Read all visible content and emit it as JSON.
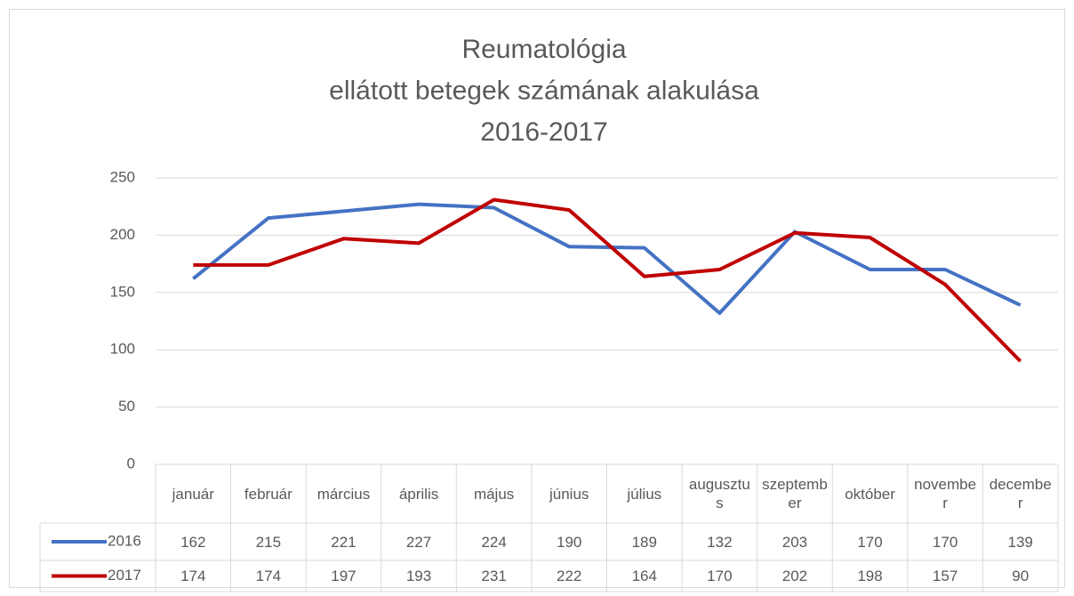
{
  "chart_data": {
    "type": "line",
    "title": [
      "Reumatológia",
      "ellátott betegek számának alakulása",
      "2016-2017"
    ],
    "categories": [
      "január",
      "február",
      "március",
      "április",
      "május",
      "június",
      "július",
      "augusztus",
      "szeptember",
      "október",
      "november",
      "december"
    ],
    "series": [
      {
        "name": "2016",
        "color": "#4472c4",
        "values": [
          162,
          215,
          221,
          227,
          224,
          190,
          189,
          132,
          203,
          170,
          170,
          139
        ]
      },
      {
        "name": "2017",
        "color": "#c00000",
        "values": [
          174,
          174,
          197,
          193,
          231,
          222,
          164,
          170,
          202,
          198,
          157,
          90
        ]
      }
    ],
    "ylim": [
      0,
      250
    ],
    "yticks": [
      0,
      50,
      100,
      150,
      200,
      250
    ],
    "grid": true,
    "data_table": true
  }
}
